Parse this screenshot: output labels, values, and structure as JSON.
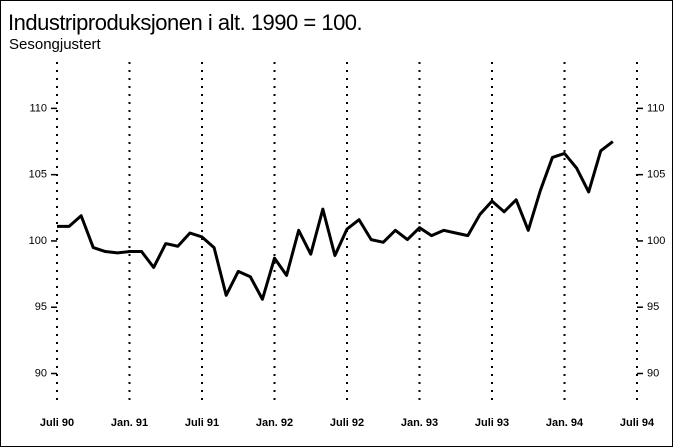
{
  "chart_data": {
    "type": "line",
    "title": "Industriproduksjonen i alt. 1990 = 100.",
    "subtitle": "Sesongjustert",
    "x": [
      0,
      1,
      2,
      3,
      4,
      5,
      6,
      7,
      8,
      9,
      10,
      11,
      12,
      13,
      14,
      15,
      16,
      17,
      18,
      19,
      20,
      21,
      22,
      23,
      24,
      25,
      26,
      27,
      28,
      29,
      30,
      31,
      32,
      33,
      34,
      35,
      36,
      37,
      38,
      39,
      40,
      41,
      42,
      43,
      44,
      45,
      46
    ],
    "series": [
      {
        "name": "Industriproduksjonen",
        "color": "#000000",
        "values": [
          101.1,
          101.1,
          101.9,
          99.5,
          99.2,
          99.1,
          99.2,
          99.2,
          98.0,
          99.8,
          99.6,
          100.6,
          100.3,
          99.5,
          95.9,
          97.7,
          97.3,
          95.6,
          98.7,
          97.4,
          100.8,
          99.0,
          102.4,
          98.9,
          100.9,
          101.6,
          100.1,
          99.9,
          100.8,
          100.1,
          101.0,
          100.4,
          100.8,
          100.6,
          100.4,
          102.0,
          103.0,
          102.2,
          103.1,
          100.8,
          103.8,
          106.3,
          106.6,
          105.5,
          103.7,
          106.8,
          107.5
        ]
      }
    ],
    "xlim": [
      0,
      48
    ],
    "xticks": [
      {
        "value": 0,
        "label": "Juli 90"
      },
      {
        "value": 6,
        "label": "Jan. 91"
      },
      {
        "value": 12,
        "label": "Juli 91"
      },
      {
        "value": 18,
        "label": "Jan. 92"
      },
      {
        "value": 24,
        "label": "Juli 92"
      },
      {
        "value": 30,
        "label": "Jan. 93"
      },
      {
        "value": 36,
        "label": "Juli 93"
      },
      {
        "value": 42,
        "label": "Jan. 94"
      },
      {
        "value": 48,
        "label": "Juli 94"
      }
    ],
    "ylim": [
      88,
      113.5
    ],
    "yticks": [
      90,
      95,
      100,
      105,
      110
    ],
    "grid": true
  }
}
